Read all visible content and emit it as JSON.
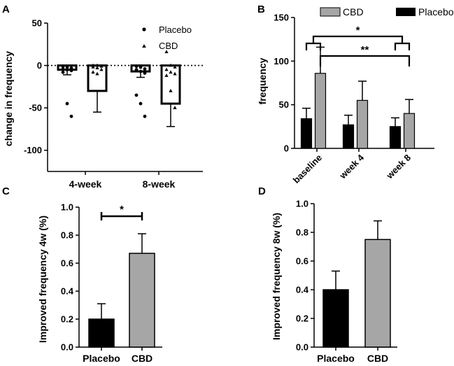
{
  "colors": {
    "placebo": "#000000",
    "cbd": "#a6a6a6",
    "open": "#ffffff"
  },
  "chart_data": [
    {
      "panel": "A",
      "type": "bar",
      "ylabel": "change in frequency",
      "categories": [
        "4-week",
        "8-week"
      ],
      "ylim": [
        -125,
        50
      ],
      "yticks": [
        50,
        0,
        -50,
        -100
      ],
      "legend": [
        "Placebo",
        "CBD"
      ],
      "legend_position": "top-right",
      "zero_line": "dotted",
      "series": [
        {
          "name": "Placebo",
          "values": [
            -5,
            -7
          ],
          "errors": [
            6,
            7
          ],
          "points": [
            [
              -1,
              -2,
              -3,
              -4,
              -5,
              -6,
              -8,
              -45,
              -60
            ],
            [
              -1,
              -2,
              -4,
              -5,
              -7,
              -9,
              -35,
              -45,
              -60
            ]
          ]
        },
        {
          "name": "CBD",
          "values": [
            -30,
            -45
          ],
          "errors": [
            25,
            27
          ],
          "points": [
            [
              0,
              0,
              -1,
              -2,
              -3,
              -5,
              -8,
              -10
            ],
            [
              16,
              0,
              -2,
              -5,
              -8,
              -10,
              -12,
              -30,
              -50
            ]
          ]
        }
      ]
    },
    {
      "panel": "B",
      "type": "bar",
      "ylabel": "frequency",
      "categories": [
        "baseline",
        "week 4",
        "week 8"
      ],
      "ylim": [
        0,
        150
      ],
      "yticks": [
        0,
        50,
        100,
        150
      ],
      "legend": [
        "CBD",
        "Placebo"
      ],
      "legend_position": "top",
      "series": [
        {
          "name": "Placebo",
          "values": [
            34,
            27,
            25
          ],
          "errors": [
            12,
            11,
            10
          ]
        },
        {
          "name": "CBD",
          "values": [
            86,
            55,
            40
          ],
          "errors": [
            30,
            22,
            16
          ]
        }
      ],
      "significance": [
        {
          "label": "*",
          "from": "baseline",
          "to": "week 8"
        },
        {
          "label": "**",
          "from": "baseline CBD",
          "to": "week 8 CBD"
        }
      ]
    },
    {
      "panel": "C",
      "type": "bar",
      "ylabel": "Improved frequency 4w (%)",
      "categories": [
        "Placebo",
        "CBD"
      ],
      "ylim": [
        0,
        1.0
      ],
      "yticks": [
        "0.0",
        "0.2",
        "0.4",
        "0.6",
        "0.8",
        "1.0"
      ],
      "values": [
        0.2,
        0.67
      ],
      "errors": [
        0.11,
        0.14
      ],
      "significance": [
        {
          "label": "*",
          "from": "Placebo",
          "to": "CBD"
        }
      ]
    },
    {
      "panel": "D",
      "type": "bar",
      "ylabel": "Improved frequency 8w (%)",
      "categories": [
        "Placebo",
        "CBD"
      ],
      "ylim": [
        0,
        1.0
      ],
      "yticks": [
        "0.0",
        "0.2",
        "0.4",
        "0.6",
        "0.8",
        "1.0"
      ],
      "values": [
        0.4,
        0.75
      ],
      "errors": [
        0.13,
        0.13
      ]
    }
  ]
}
